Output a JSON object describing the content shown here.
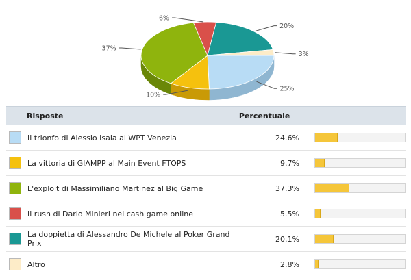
{
  "chart_data": {
    "type": "pie",
    "slices": [
      {
        "label": "Il trionfo di Alessio Isaia al WPT Venezia",
        "value": 24.6,
        "display": "25%",
        "color": "#b8dcf5",
        "side": "#8fb6d1"
      },
      {
        "label": "La vittoria di GIAMPP al Main Event FTOPS",
        "value": 9.7,
        "display": "10%",
        "color": "#f5c10e",
        "side": "#c99a06"
      },
      {
        "label": "L'exploit di Massimiliano Martinez al Big Game",
        "value": 37.3,
        "display": "37%",
        "color": "#8fb40d",
        "side": "#6a8708"
      },
      {
        "label": "Il rush di Dario Minieri nel cash game online",
        "value": 5.5,
        "display": "6%",
        "color": "#d9504a",
        "side": "#a63a35"
      },
      {
        "label": "La doppietta di Alessandro De Michele al Poker Grand Prix",
        "value": 20.1,
        "display": "20%",
        "color": "#1a9894",
        "side": "#0f6f6c"
      },
      {
        "label": "Altro",
        "value": 2.8,
        "display": "3%",
        "color": "#fdecc8",
        "side": "#d9c49e"
      }
    ]
  },
  "table": {
    "header_answers": "Risposte",
    "header_percent": "Percentuale",
    "rows": [
      {
        "answer": "Il trionfo di Alessio Isaia al WPT Venezia",
        "percent": "24.6%",
        "fraction": 0.246,
        "color": "#b8dcf5"
      },
      {
        "answer": "La vittoria di GIAMPP al Main Event FTOPS",
        "percent": "9.7%",
        "fraction": 0.097,
        "color": "#f5c10e"
      },
      {
        "answer": "L'exploit di Massimiliano Martinez al Big Game",
        "percent": "37.3%",
        "fraction": 0.373,
        "color": "#8fb40d"
      },
      {
        "answer": "Il rush di Dario Minieri nel cash game online",
        "percent": "5.5%",
        "fraction": 0.055,
        "color": "#d9504a"
      },
      {
        "answer": "La doppietta di Alessandro De Michele al Poker Grand Prix",
        "percent": "20.1%",
        "fraction": 0.201,
        "color": "#1a9894"
      },
      {
        "answer": "Altro",
        "percent": "2.8%",
        "fraction": 0.028,
        "color": "#fdecc8"
      }
    ]
  },
  "colors": {
    "bar_fill": "#f5c63a",
    "header_bg": "#dce3ea"
  }
}
